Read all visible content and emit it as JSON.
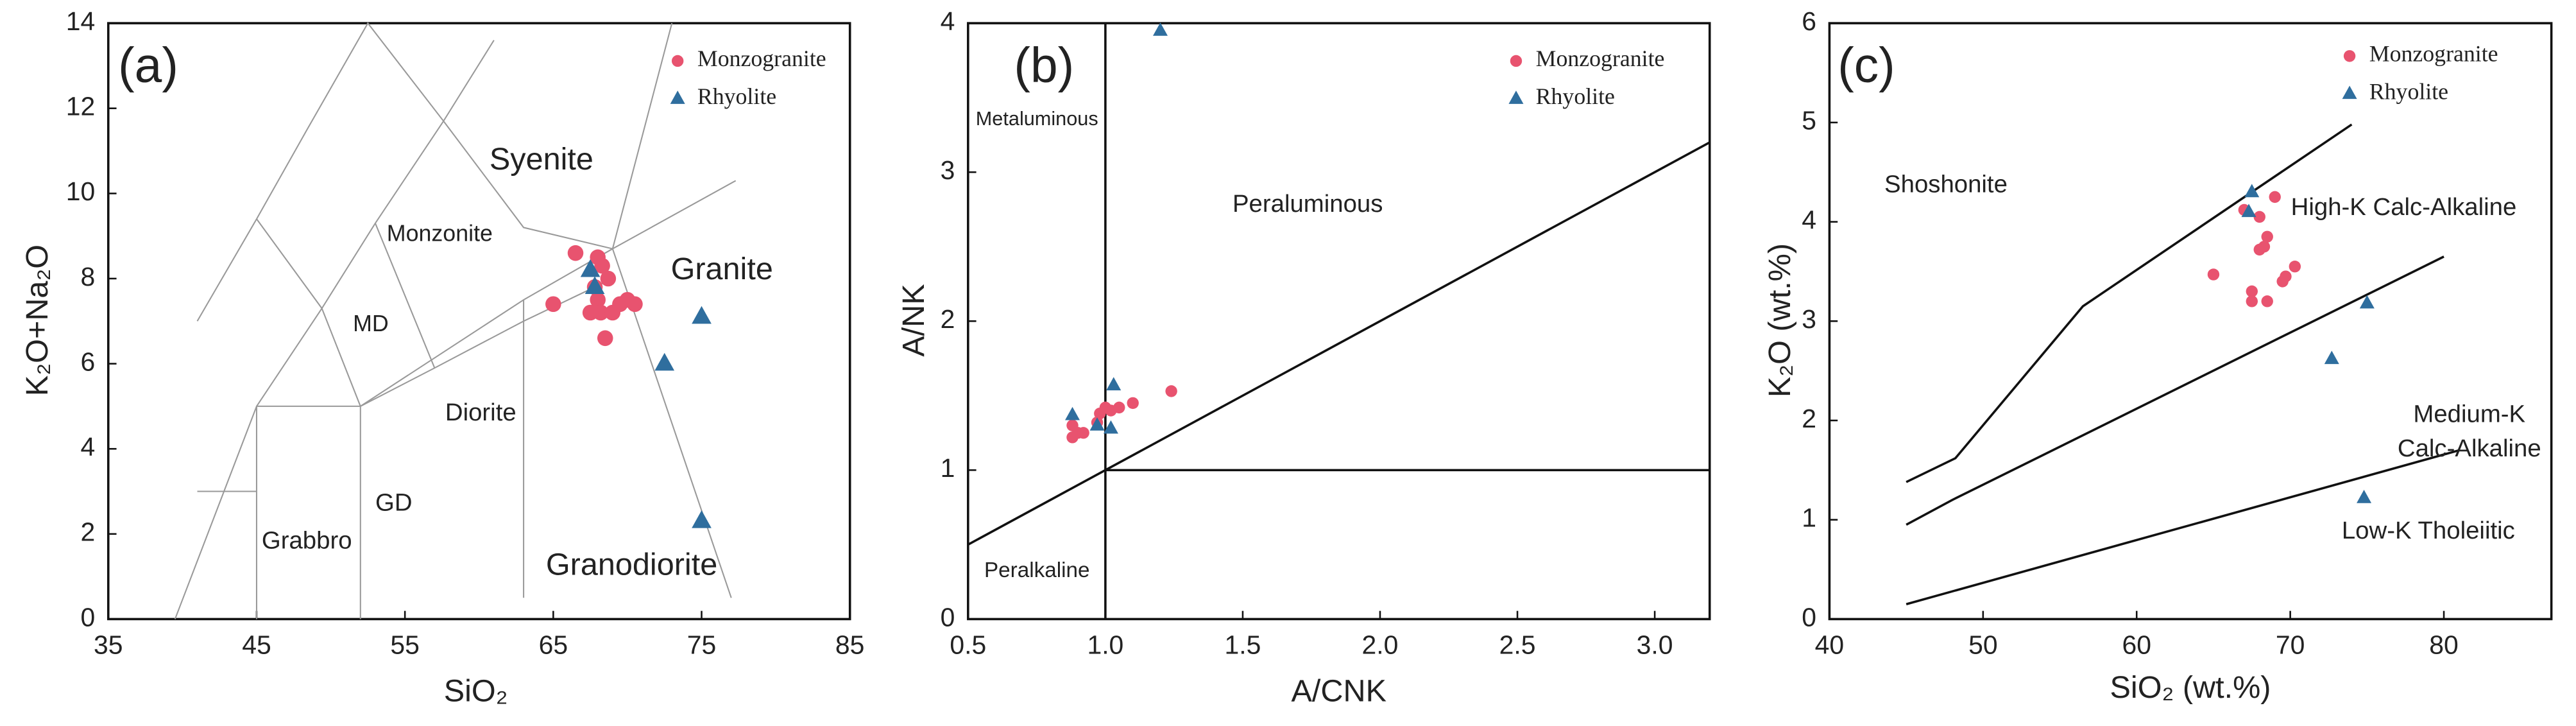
{
  "chart_data": [
    {
      "type": "scatter",
      "panel_label": "(a)",
      "xlabel": "SiO₂",
      "ylabel": "K₂O+Na₂O",
      "xlim": [
        35,
        85
      ],
      "ylim": [
        0,
        14
      ],
      "xticks": [
        35,
        45,
        55,
        65,
        75,
        85
      ],
      "yticks": [
        0,
        2,
        4,
        6,
        8,
        10,
        12,
        14
      ],
      "series": [
        {
          "name": "Monzogranite",
          "color": "#e8536f",
          "marker": "circle",
          "x": [
            66.5,
            68,
            68.3,
            68.7,
            67.8,
            65,
            68,
            69.5,
            70,
            70.5,
            68.2,
            69,
            67.5,
            68.5
          ],
          "values": [
            8.6,
            8.5,
            8.3,
            8.0,
            7.8,
            7.4,
            7.5,
            7.4,
            7.5,
            7.4,
            7.2,
            7.2,
            7.2,
            6.6
          ]
        },
        {
          "name": "Rhyolite",
          "color": "#2f6e9e",
          "marker": "triangle",
          "x": [
            67.5,
            67.8,
            72.5,
            75,
            75
          ],
          "values": [
            8.2,
            7.8,
            6.0,
            7.1,
            2.3
          ]
        }
      ],
      "boundaries": [
        {
          "x": [
            41,
            45,
            48.4,
            52.5,
            57.6,
            61
          ],
          "y": [
            7,
            9.4,
            11.5,
            14,
            11.7,
            13.6
          ]
        },
        {
          "x": [
            45,
            49.4,
            53,
            57.6
          ],
          "y": [
            9.4,
            7.3,
            9.3,
            11.7
          ]
        },
        {
          "x": [
            45,
            49.4,
            52,
            57,
            63,
            69
          ],
          "y": [
            5,
            7.3,
            5,
            5.9,
            7,
            8
          ]
        },
        {
          "x": [
            53,
            57
          ],
          "y": [
            9.3,
            5.9
          ]
        },
        {
          "x": [
            57.6,
            63,
            69,
            77.3
          ],
          "y": [
            11.7,
            9.2,
            8.7,
            10.3
          ]
        },
        {
          "x": [
            39.5,
            45,
            52,
            63,
            69
          ],
          "y": [
            0,
            5,
            5,
            7.5,
            8.7
          ]
        },
        {
          "x": [
            41,
            45
          ],
          "y": [
            3,
            3
          ]
        },
        {
          "x": [
            45,
            45
          ],
          "y": [
            0,
            5
          ]
        },
        {
          "x": [
            52,
            52
          ],
          "y": [
            0,
            5
          ]
        },
        {
          "x": [
            63,
            63
          ],
          "y": [
            0.5,
            7.5
          ]
        },
        {
          "x": [
            69,
            77
          ],
          "y": [
            8.7,
            0.5
          ]
        },
        {
          "x": [
            69,
            73
          ],
          "y": [
            8.7,
            14
          ]
        }
      ],
      "annotations": [
        "Syenite",
        "Monzonite",
        "MD",
        "Granite",
        "Diorite",
        "GD",
        "Grabbro",
        "Granodiorite"
      ]
    },
    {
      "type": "scatter",
      "panel_label": "(b)",
      "xlabel": "A/CNK",
      "ylabel": "A/NK",
      "xlim": [
        0.5,
        3.2
      ],
      "ylim": [
        0,
        4
      ],
      "xticks": [
        0.5,
        {
          "value": 1,
          "label": "1.0"
        },
        1.5,
        {
          "value": 2,
          "label": "2.0"
        },
        2.5,
        {
          "value": 3,
          "label": "3.0"
        }
      ],
      "yticks": [
        0,
        1,
        2,
        3,
        4
      ],
      "series": [
        {
          "name": "Monzogranite",
          "color": "#e8536f",
          "marker": "circle",
          "x": [
            0.88,
            0.9,
            0.92,
            0.88,
            0.98,
            1.0,
            1.02,
            1.05,
            1.1,
            1.24,
            0.97
          ],
          "values": [
            1.22,
            1.25,
            1.25,
            1.3,
            1.38,
            1.42,
            1.4,
            1.42,
            1.45,
            1.53,
            1.32
          ]
        },
        {
          "name": "Rhyolite",
          "color": "#2f6e9e",
          "marker": "triangle",
          "x": [
            0.88,
            0.97,
            1.02,
            1.03,
            1.2
          ],
          "values": [
            1.37,
            1.3,
            1.28,
            1.57,
            3.95
          ]
        }
      ],
      "boundaries": [
        {
          "x": [
            1,
            1
          ],
          "y": [
            0,
            4
          ]
        },
        {
          "x": [
            1,
            3.2
          ],
          "y": [
            1,
            1
          ]
        },
        {
          "x": [
            0.5,
            3.2
          ],
          "y": [
            0.5,
            3.2
          ]
        }
      ],
      "annotations": [
        "Metaluminous",
        "Peraluminous",
        "Peralkaline"
      ]
    },
    {
      "type": "scatter",
      "panel_label": "(c)",
      "xlabel": "SiO₂ (wt.%)",
      "ylabel": "K₂O (wt.%)",
      "xlim": [
        40,
        87
      ],
      "ylim": [
        0,
        6
      ],
      "xticks": [
        40,
        50,
        60,
        70,
        80
      ],
      "yticks": [
        0,
        1,
        2,
        3,
        4,
        5,
        6
      ],
      "series": [
        {
          "name": "Monzogranite",
          "color": "#e8536f",
          "marker": "circle",
          "x": [
            67,
            68,
            69,
            68.5,
            68.3,
            68,
            65,
            67.5,
            67.5,
            68.5,
            69.5,
            69.7,
            70.3
          ],
          "values": [
            4.12,
            4.05,
            4.25,
            3.85,
            3.75,
            3.72,
            3.47,
            3.3,
            3.2,
            3.2,
            3.4,
            3.45,
            3.55
          ]
        },
        {
          "name": "Rhyolite",
          "color": "#2f6e9e",
          "marker": "triangle",
          "x": [
            67.5,
            67.3,
            75,
            72.7,
            74.8
          ],
          "values": [
            4.3,
            4.1,
            3.18,
            2.62,
            1.22
          ]
        }
      ],
      "boundaries": [
        {
          "x": [
            45,
            48.2,
            56.5,
            74
          ],
          "y": [
            1.38,
            1.62,
            3.15,
            4.98
          ]
        },
        {
          "x": [
            45,
            48,
            80
          ],
          "y": [
            0.95,
            1.2,
            3.65
          ]
        },
        {
          "x": [
            45,
            81
          ],
          "y": [
            0.15,
            1.7
          ]
        }
      ],
      "annotations": [
        "Shoshonite",
        "High-K Calc-Alkaline",
        "Medium-K",
        "Calc-Alkaline",
        "Low-K Tholeiitic"
      ]
    }
  ]
}
